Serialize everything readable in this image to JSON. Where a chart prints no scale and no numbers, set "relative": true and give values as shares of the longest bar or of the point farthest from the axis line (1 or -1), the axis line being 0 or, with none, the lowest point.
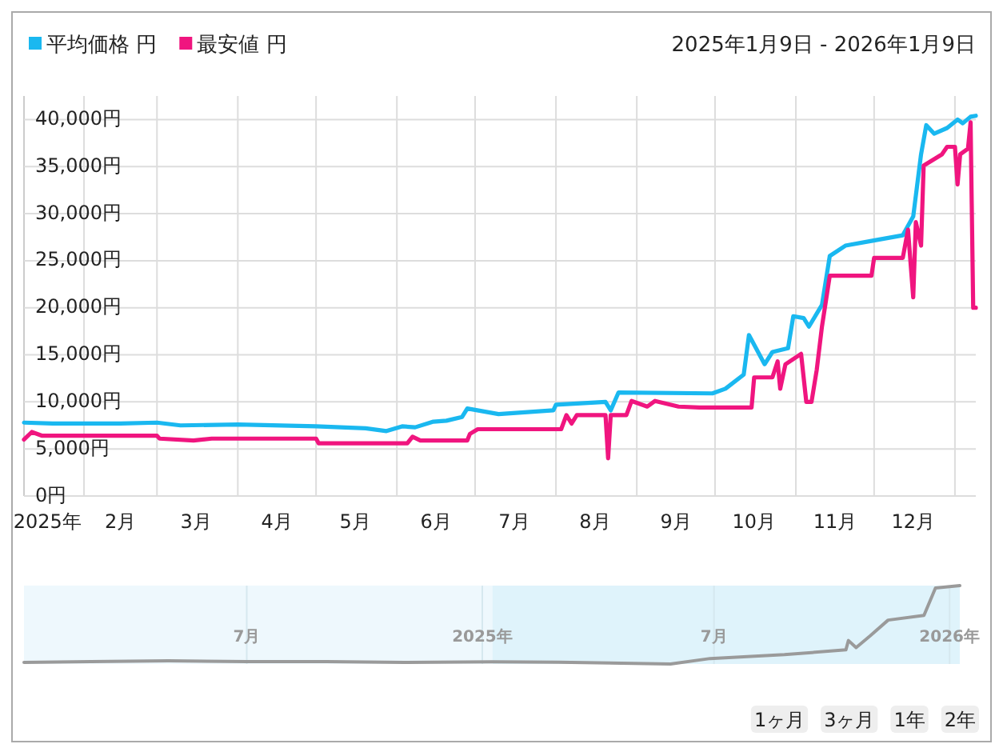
{
  "chart_data": [
    {
      "type": "line",
      "subtitle": "2025年1月9日 - 2026年1月9日",
      "series": [
        {
          "name": "平均価格 円",
          "color": "#1ab8f0",
          "x": [
            "2025-01-09",
            "2025-01-20",
            "2025-02-15",
            "2025-03-01",
            "2025-03-10",
            "2025-04-01",
            "2025-05-01",
            "2025-05-20",
            "2025-05-28",
            "2025-06-03",
            "2025-06-08",
            "2025-06-15",
            "2025-06-20",
            "2025-06-26",
            "2025-06-28",
            "2025-07-10",
            "2025-07-31",
            "2025-08-01",
            "2025-08-20",
            "2025-08-22",
            "2025-08-25",
            "2025-09-30",
            "2025-10-05",
            "2025-10-12",
            "2025-10-14",
            "2025-10-20",
            "2025-10-23",
            "2025-10-29",
            "2025-10-31",
            "2025-11-04",
            "2025-11-06",
            "2025-11-11",
            "2025-11-14",
            "2025-11-20",
            "2025-11-30",
            "2025-12-12",
            "2025-12-16",
            "2025-12-19",
            "2025-12-21",
            "2025-12-24",
            "2025-12-29",
            "2026-01-02",
            "2026-01-04",
            "2026-01-07",
            "2026-01-09"
          ],
          "values": [
            7800,
            7700,
            7700,
            7800,
            7500,
            7600,
            7400,
            7200,
            6900,
            7400,
            7300,
            7900,
            8000,
            8400,
            9300,
            8700,
            9100,
            9700,
            10000,
            9100,
            11000,
            10900,
            11400,
            12900,
            17100,
            14000,
            15300,
            15700,
            19100,
            18900,
            18000,
            20300,
            25500,
            26600,
            27100,
            27700,
            29700,
            36300,
            39400,
            38500,
            39100,
            40000,
            39600,
            40300,
            40400
          ]
        },
        {
          "name": "最安値 円",
          "color": "#f0157f",
          "x": [
            "2025-01-09",
            "2025-01-12",
            "2025-01-16",
            "2025-03-01",
            "2025-03-02",
            "2025-03-15",
            "2025-03-22",
            "2025-05-01",
            "2025-05-02",
            "2025-06-05",
            "2025-06-07",
            "2025-06-10",
            "2025-06-28",
            "2025-06-29",
            "2025-07-02",
            "2025-07-31",
            "2025-08-03",
            "2025-08-05",
            "2025-08-07",
            "2025-08-09",
            "2025-08-20",
            "2025-08-21",
            "2025-08-22",
            "2025-08-28",
            "2025-08-30",
            "2025-09-05",
            "2025-09-08",
            "2025-09-17",
            "2025-09-25",
            "2025-10-15",
            "2025-10-16",
            "2025-10-23",
            "2025-10-25",
            "2025-10-26",
            "2025-10-28",
            "2025-11-03",
            "2025-11-05",
            "2025-11-07",
            "2025-11-09",
            "2025-11-11",
            "2025-11-14",
            "2025-11-30",
            "2025-12-01",
            "2025-12-12",
            "2025-12-14",
            "2025-12-16",
            "2025-12-17",
            "2025-12-19",
            "2025-12-20",
            "2025-12-27",
            "2025-12-29",
            "2026-01-01",
            "2026-01-02",
            "2026-01-03",
            "2026-01-06",
            "2026-01-07",
            "2026-01-08",
            "2026-01-09"
          ],
          "values": [
            6000,
            6800,
            6400,
            6400,
            6100,
            5900,
            6100,
            6100,
            5600,
            5600,
            6300,
            5900,
            5900,
            6600,
            7100,
            7100,
            7100,
            8600,
            7700,
            8600,
            8600,
            4000,
            8600,
            8600,
            10100,
            9500,
            10100,
            9500,
            9400,
            9400,
            12600,
            12600,
            14300,
            11400,
            14000,
            15100,
            10000,
            10000,
            13400,
            18000,
            23400,
            23400,
            25300,
            25300,
            28300,
            21100,
            29100,
            26600,
            35100,
            36300,
            37100,
            37100,
            33100,
            36300,
            36900,
            39700,
            20000,
            20000
          ]
        }
      ],
      "xlim": [
        "2025-01-09",
        "2026-01-09"
      ],
      "xticks": [
        {
          "value": "2025-02-01",
          "label": null
        },
        {
          "value": "2025-03-01",
          "label": null
        },
        {
          "value": "2025-04-01",
          "label": null
        },
        {
          "value": "2025-05-01",
          "label": null
        },
        {
          "value": "2025-06-01",
          "label": null
        },
        {
          "value": "2025-07-01",
          "label": null
        },
        {
          "value": "2025-08-01",
          "label": null
        },
        {
          "value": "2025-09-01",
          "label": null
        },
        {
          "value": "2025-10-01",
          "label": null
        },
        {
          "value": "2025-11-01",
          "label": null
        },
        {
          "value": "2025-12-01",
          "label": null
        },
        {
          "value": "2026-01-01",
          "label": null
        },
        {
          "value": "2025-01-18",
          "label": "2025年"
        },
        {
          "value": "2025-02-15",
          "label": "2月"
        },
        {
          "value": "2025-03-16",
          "label": "3月"
        },
        {
          "value": "2025-04-16",
          "label": "4月"
        },
        {
          "value": "2025-05-16",
          "label": "5月"
        },
        {
          "value": "2025-06-16",
          "label": "6月"
        },
        {
          "value": "2025-07-16",
          "label": "7月"
        },
        {
          "value": "2025-08-16",
          "label": "8月"
        },
        {
          "value": "2025-09-16",
          "label": "9月"
        },
        {
          "value": "2025-10-16",
          "label": "10月"
        },
        {
          "value": "2025-11-16",
          "label": "11月"
        },
        {
          "value": "2025-12-16",
          "label": "12月"
        }
      ],
      "ylim": [
        0,
        42500
      ],
      "yticks": [
        {
          "value": 0,
          "label": "0円"
        },
        {
          "value": 5000,
          "label": "5,000円"
        },
        {
          "value": 10000,
          "label": "10,000円"
        },
        {
          "value": 15000,
          "label": "15,000円"
        },
        {
          "value": 20000,
          "label": "20,000円"
        },
        {
          "value": 25000,
          "label": "25,000円"
        },
        {
          "value": 30000,
          "label": "30,000円"
        },
        {
          "value": 35000,
          "label": "35,000円"
        },
        {
          "value": 40000,
          "label": "40,000円"
        }
      ],
      "grid": true,
      "legend": "top left",
      "line_style": "solid",
      "marker": "none"
    },
    {
      "type": "line",
      "relative": true,
      "series": [
        {
          "color": "#9a9a9a",
          "x": [
            "2024-01-09",
            "2024-03-01",
            "2024-05-01",
            "2024-07-01",
            "2024-09-01",
            "2024-11-01",
            "2025-01-09",
            "2025-03-01",
            "2025-05-28",
            "2025-06-28",
            "2025-08-25",
            "2025-10-12",
            "2025-10-14",
            "2025-10-20",
            "2025-10-31",
            "2025-11-14",
            "2025-12-12",
            "2025-12-21",
            "2026-01-09"
          ],
          "values": [
            0.021,
            0.03,
            0.04,
            0.03,
            0.03,
            0.02,
            0.027,
            0.024,
            0,
            0.07,
            0.12,
            0.18,
            0.3,
            0.21,
            0.36,
            0.56,
            0.62,
            0.97,
            1
          ]
        }
      ],
      "xlim": [
        "2024-01-09",
        "2026-01-09"
      ],
      "xticks": [
        {
          "value": "2024-07-01",
          "label": "7月"
        },
        {
          "value": "2025-01-01",
          "label": "2025年"
        },
        {
          "value": "2025-07-01",
          "label": "7月"
        },
        {
          "value": "2026-01-01",
          "label": "2026年"
        }
      ],
      "bands": [
        {
          "axis": "x",
          "from": "2025-01-09",
          "to": "2026-01-09",
          "color": "#dff3fb"
        }
      ],
      "grid": "x",
      "line_style": "solid",
      "marker": "none",
      "tick_labels": "x",
      "annotations": [
        "1ヶ月",
        "3ヶ月",
        "1年",
        "2年"
      ]
    }
  ]
}
